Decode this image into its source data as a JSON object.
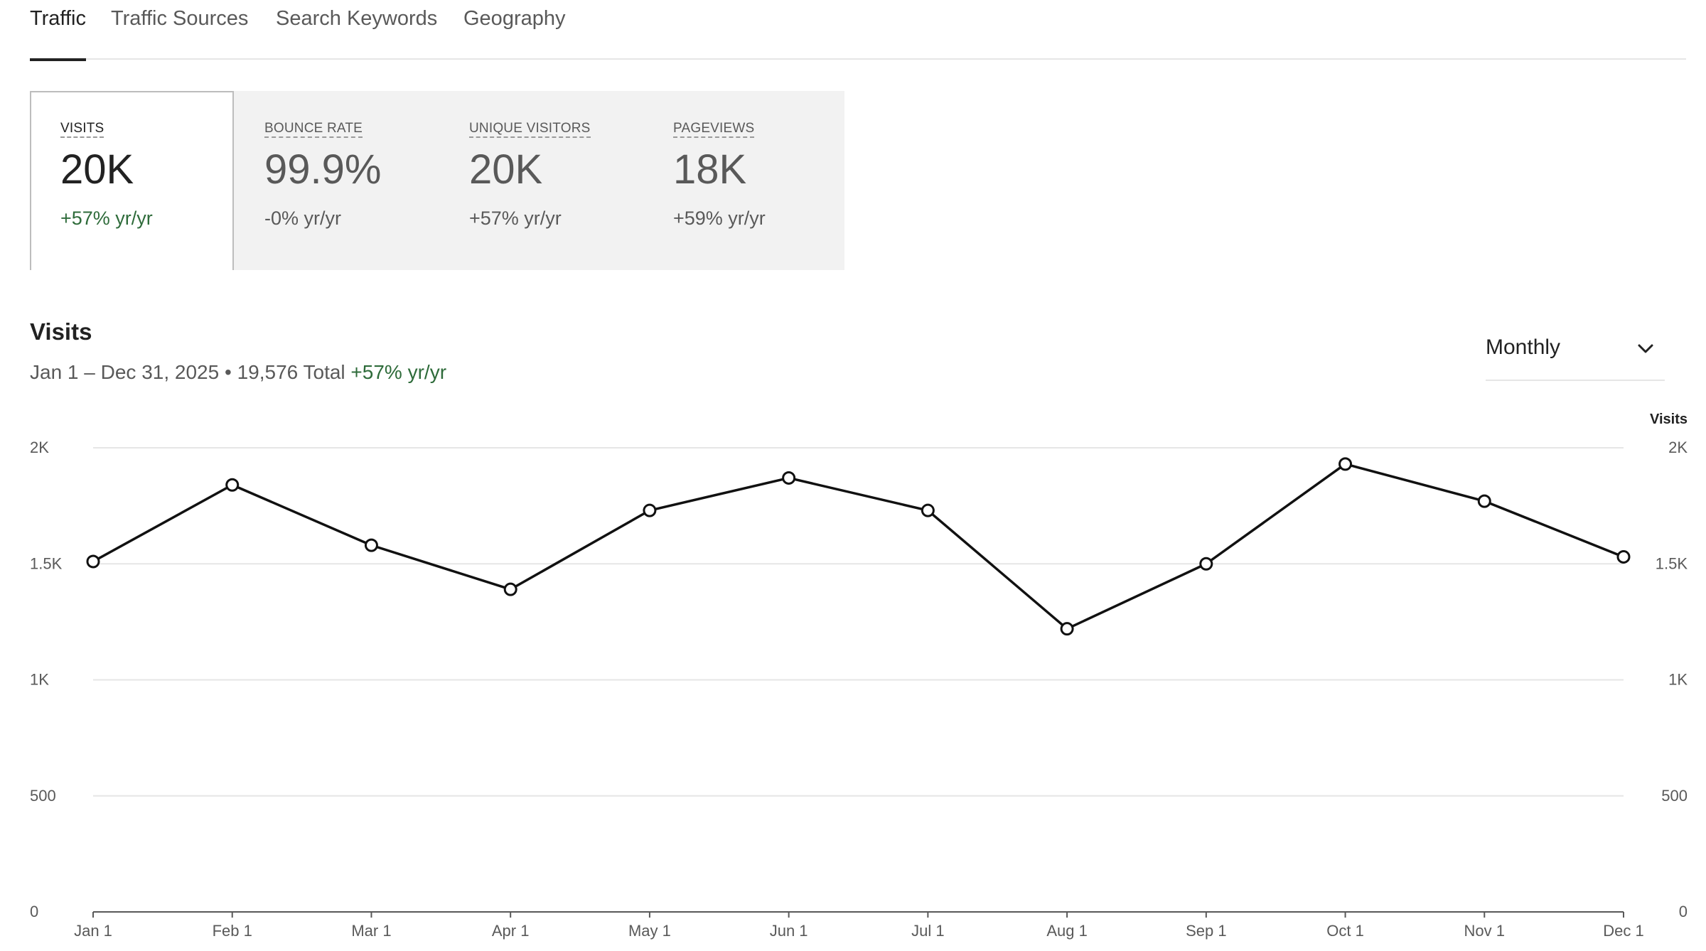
{
  "tabs": [
    {
      "label": "Traffic",
      "active": true
    },
    {
      "label": "Traffic Sources",
      "active": false
    },
    {
      "label": "Search Keywords",
      "active": false
    },
    {
      "label": "Geography",
      "active": false
    }
  ],
  "metrics": [
    {
      "label": "VISITS",
      "value": "20K",
      "change": "+57% yr/yr",
      "selected": true
    },
    {
      "label": "BOUNCE RATE",
      "value": "99.9%",
      "change": "-0% yr/yr",
      "selected": false
    },
    {
      "label": "UNIQUE VISITORS",
      "value": "20K",
      "change": "+57% yr/yr",
      "selected": false
    },
    {
      "label": "PAGEVIEWS",
      "value": "18K",
      "change": "+59% yr/yr",
      "selected": false
    }
  ],
  "chart_header": {
    "title": "Visits",
    "date_range": "Jan 1 – Dec 31, 2025",
    "separator": "•",
    "total": "19,576 Total",
    "change": "+57% yr/yr"
  },
  "period_select": {
    "value": "Monthly",
    "icon": "chevron-down-icon"
  },
  "colors": {
    "positive": "#2e6b3a",
    "line": "#111111",
    "grid": "#e6e6e6",
    "card_bg": "#f2f2f2"
  },
  "chart_data": {
    "type": "line",
    "title": "",
    "xlabel": "",
    "ylabel": "",
    "y2label": "Visits",
    "categories": [
      "Jan 1",
      "Feb 1",
      "Mar 1",
      "Apr 1",
      "May 1",
      "Jun 1",
      "Jul 1",
      "Aug 1",
      "Sep 1",
      "Oct 1",
      "Nov 1",
      "Dec 1"
    ],
    "series": [
      {
        "values": [
          1510,
          1840,
          1580,
          1390,
          1730,
          1870,
          1730,
          1220,
          1500,
          1930,
          1770,
          1530
        ]
      }
    ],
    "ylim": [
      0,
      2000
    ],
    "y_ticks": [
      {
        "value": 0,
        "label": "0"
      },
      {
        "value": 500,
        "label": "500"
      },
      {
        "value": 1000,
        "label": "1K"
      },
      {
        "value": 1500,
        "label": "1.5K"
      },
      {
        "value": 2000,
        "label": "2K"
      }
    ],
    "grid": true,
    "legend": "none"
  }
}
